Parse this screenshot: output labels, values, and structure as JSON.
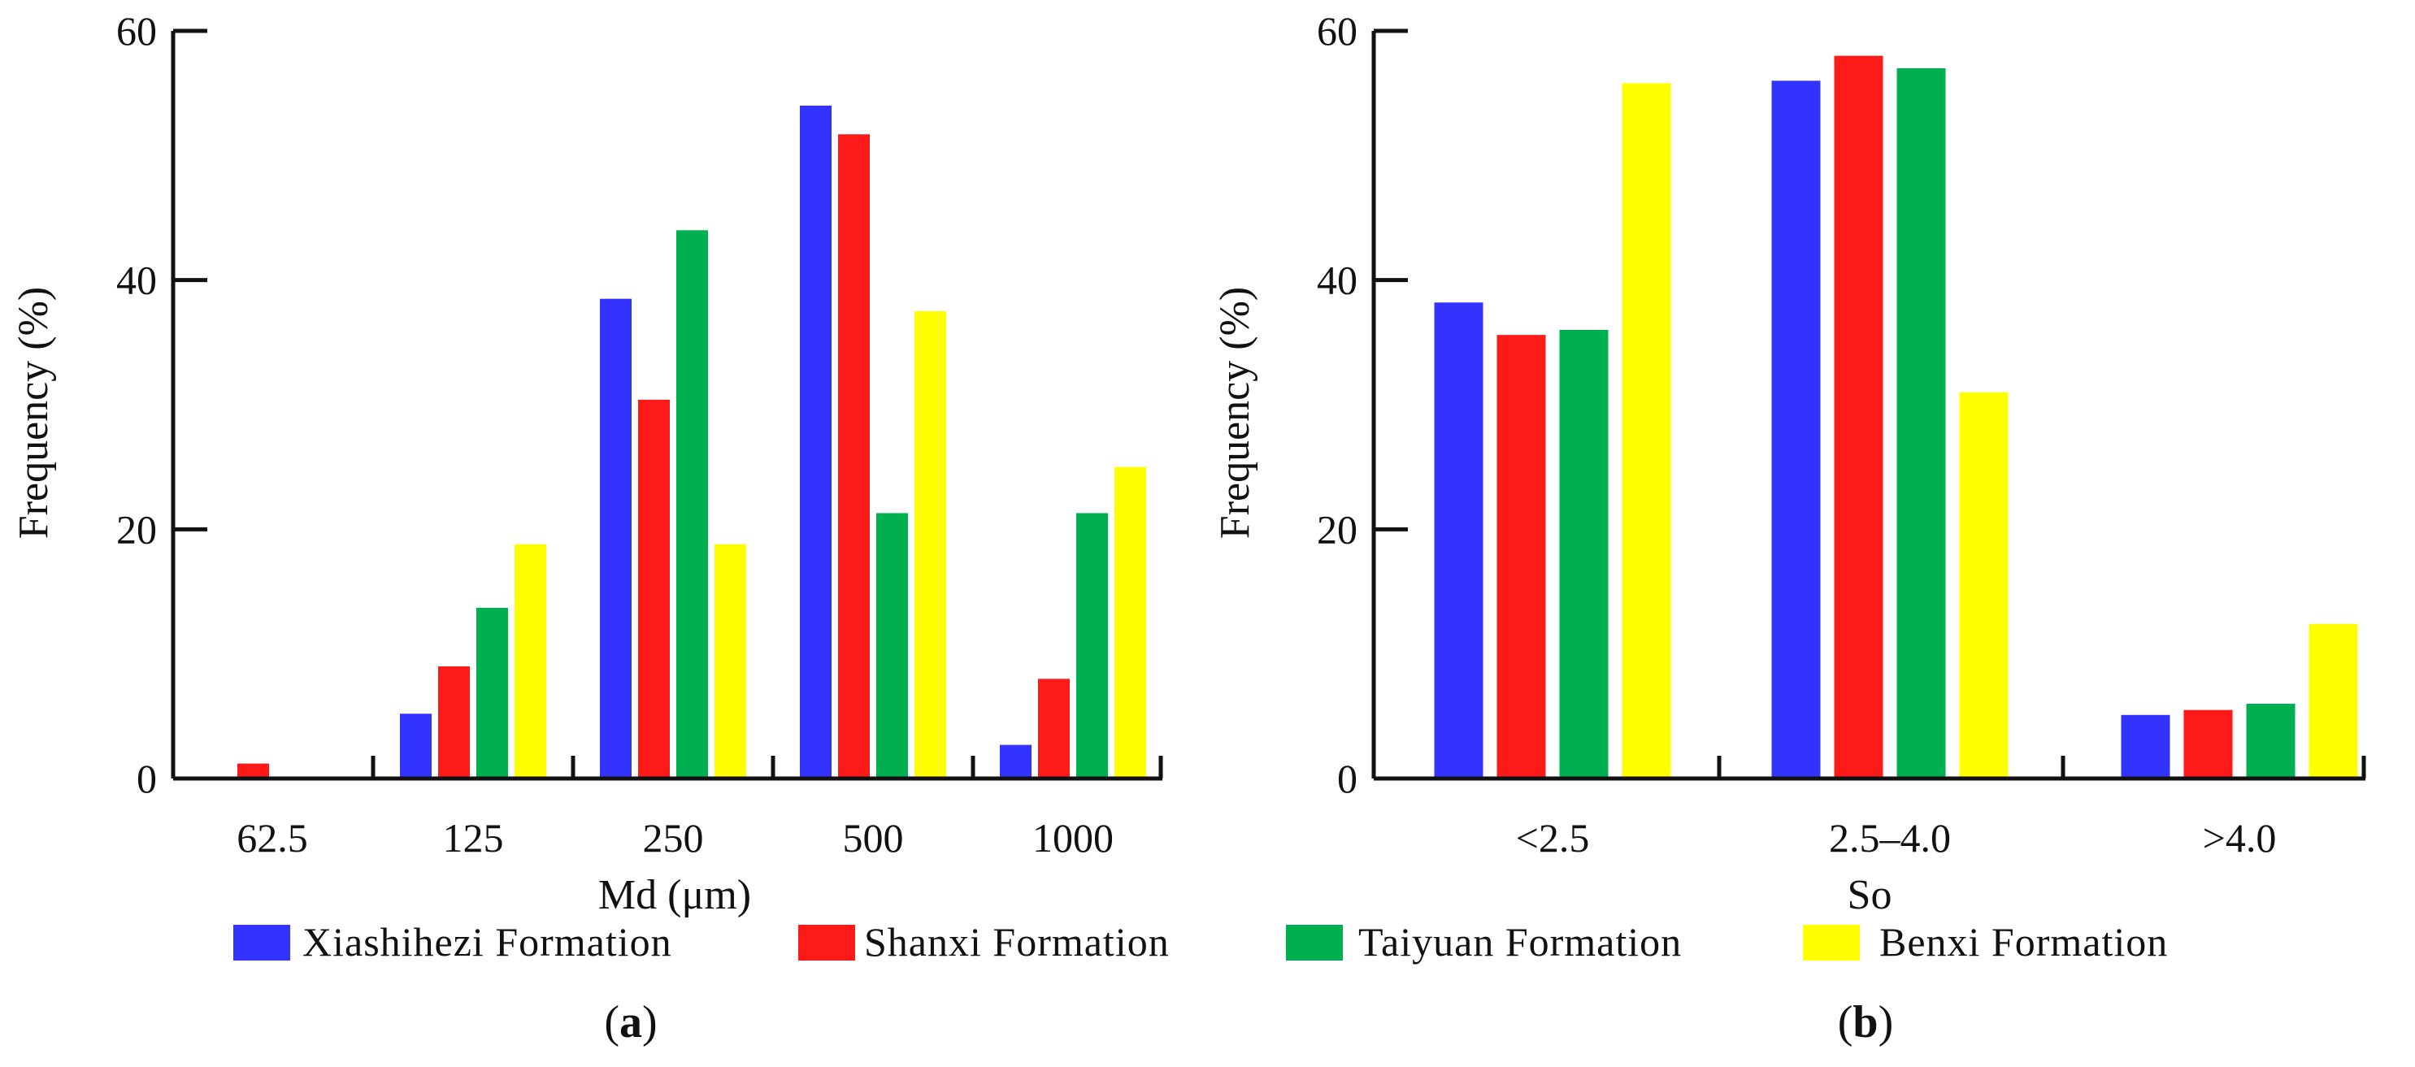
{
  "legend": {
    "items": [
      {
        "label": "Xiashihezi Formation",
        "color": "#3333ff"
      },
      {
        "label": "Shanxi Formation",
        "color": "#ff1a1a"
      },
      {
        "label": "Taiyuan Formation",
        "color": "#00b050"
      },
      {
        "label": "Benxi Formation",
        "color": "#ffff00"
      }
    ]
  },
  "chart_data": [
    {
      "type": "bar",
      "panel_label": "(a)",
      "panel_letter": "a",
      "xlabel": "Md (μm)",
      "ylabel": "Frequency (%)",
      "ylim": [
        0,
        60
      ],
      "yticks": [
        0,
        20,
        40,
        60
      ],
      "categories": [
        "62.5",
        "125",
        "250",
        "500",
        "1000"
      ],
      "series": [
        {
          "name": "Xiashihezi Formation",
          "color": "#3333ff",
          "values": [
            0,
            5.2,
            38.5,
            54,
            2.7
          ]
        },
        {
          "name": "Shanxi Formation",
          "color": "#ff1a1a",
          "values": [
            1.2,
            9,
            30.4,
            51.7,
            8
          ]
        },
        {
          "name": "Taiyuan Formation",
          "color": "#00b050",
          "values": [
            0,
            13.7,
            44,
            21.3,
            21.3
          ]
        },
        {
          "name": "Benxi Formation",
          "color": "#ffff00",
          "values": [
            0,
            18.8,
            18.8,
            37.5,
            25
          ]
        }
      ]
    },
    {
      "type": "bar",
      "panel_label": "(b)",
      "panel_letter": "b",
      "xlabel": "So",
      "ylabel": "Frequency (%)",
      "ylim": [
        0,
        60
      ],
      "yticks": [
        0,
        20,
        40,
        60
      ],
      "categories": [
        "<2.5",
        "2.5–4.0",
        ">4.0"
      ],
      "series": [
        {
          "name": "Xiashihezi Formation",
          "color": "#3333ff",
          "values": [
            38.2,
            56,
            5.1
          ]
        },
        {
          "name": "Shanxi Formation",
          "color": "#ff1a1a",
          "values": [
            35.6,
            58,
            5.5
          ]
        },
        {
          "name": "Taiyuan Formation",
          "color": "#00b050",
          "values": [
            36,
            57,
            6
          ]
        },
        {
          "name": "Benxi Formation",
          "color": "#ffff00",
          "values": [
            55.8,
            31,
            12.4
          ]
        }
      ]
    }
  ]
}
